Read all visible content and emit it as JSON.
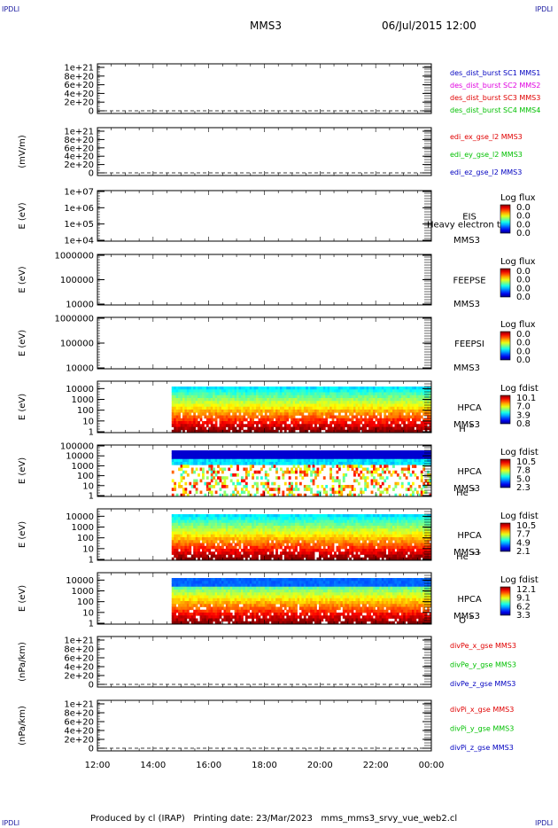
{
  "corner_marks": [
    "IPDLI",
    "IPDLI",
    "IPDLI",
    "IPDLI"
  ],
  "header": {
    "title": "MMS3",
    "date": "06/Jul/2015 12:00"
  },
  "footer": {
    "text": "Produced by cl (IRAP)   Printing date: 23/Mar/2023   mms_mms3_srvy_vue_web2.cl"
  },
  "colors": {
    "red": "#e00000",
    "magenta": "#e000e0",
    "green": "#00c000",
    "blue": "#0000c0",
    "black": "#000000"
  },
  "chart_data": [
    {
      "type": "line",
      "ylabel": "",
      "yticks": [
        "0",
        "2e+20",
        "4e+20",
        "6e+20",
        "8e+20",
        "1e+21"
      ],
      "ylim": [
        0,
        1e+21
      ],
      "dashed_zero": true,
      "legend": [
        {
          "name": "des_dist_burst SC1 MMS1",
          "color": "#0000c0"
        },
        {
          "name": "des_dist_burst SC2 MMS2",
          "color": "#e000e0"
        },
        {
          "name": "des_dist_burst SC3 MMS3",
          "color": "#e00000"
        },
        {
          "name": "des_dist_burst SC4 MMS4",
          "color": "#00c000"
        }
      ]
    },
    {
      "type": "line",
      "ylabel": "(mV/m)",
      "yticks": [
        "0",
        "2e+20",
        "4e+20",
        "6e+20",
        "8e+20",
        "1e+21"
      ],
      "ylim": [
        0,
        1e+21
      ],
      "dashed_zero": true,
      "legend": [
        {
          "name": "edi_ex_gse_l2 MMS3",
          "color": "#e00000"
        },
        {
          "name": "edi_ey_gse_l2 MMS3",
          "color": "#00c000"
        },
        {
          "name": "edi_ez_gse_l2 MMS3",
          "color": "#0000c0"
        }
      ]
    },
    {
      "type": "heatmap",
      "ylabel": "E (eV)",
      "scale": "log",
      "yticks": [
        "1e+04",
        "1e+05",
        "1e+06",
        "1e+07"
      ],
      "ylim": [
        10000,
        10000000
      ],
      "instrument": "EIS",
      "spacecraft": "MMS3",
      "note": "Heavy electron to",
      "colorbar": {
        "label": "Log flux",
        "ticks": [
          "0.0",
          "0.0",
          "0.0",
          "0.0"
        ]
      }
    },
    {
      "type": "heatmap",
      "ylabel": "E (eV)",
      "scale": "log",
      "yticks": [
        "10000",
        "100000",
        "1000000"
      ],
      "ylim": [
        10000,
        1000000
      ],
      "instrument": "FEEPSE",
      "spacecraft": "MMS3",
      "colorbar": {
        "label": "Log flux",
        "ticks": [
          "0.0",
          "0.0",
          "0.0",
          "0.0"
        ]
      }
    },
    {
      "type": "heatmap",
      "ylabel": "E (eV)",
      "scale": "log",
      "yticks": [
        "10000",
        "100000",
        "1000000"
      ],
      "ylim": [
        10000,
        1000000
      ],
      "instrument": "FEEPSI",
      "spacecraft": "MMS3",
      "colorbar": {
        "label": "Log flux",
        "ticks": [
          "0.0",
          "0.0",
          "0.0",
          "0.0"
        ]
      }
    },
    {
      "type": "heatmap",
      "ylabel": "E (eV)",
      "scale": "log",
      "yticks": [
        "1",
        "10",
        "100",
        "1000",
        "10000"
      ],
      "ylim": [
        1,
        40000
      ],
      "instrument": "HPCA",
      "spacecraft": "MMS3",
      "species": "H",
      "species_sup": "+",
      "data_start": "14:40",
      "colorbar": {
        "label": "Log fdist",
        "ticks": [
          "10.1",
          "7.0",
          "3.9",
          "0.8"
        ]
      }
    },
    {
      "type": "heatmap",
      "ylabel": "E (eV)",
      "scale": "log",
      "yticks": [
        "1",
        "10",
        "100",
        "1000",
        "10000",
        "100000"
      ],
      "ylim": [
        1,
        100000
      ],
      "instrument": "HPCA",
      "spacecraft": "MMS3",
      "species": "He",
      "species_sup": "+",
      "data_start": "14:40",
      "colorbar": {
        "label": "Log fdist",
        "ticks": [
          "10.5",
          "7.8",
          "5.0",
          "2.3"
        ]
      }
    },
    {
      "type": "heatmap",
      "ylabel": "E (eV)",
      "scale": "log",
      "yticks": [
        "1",
        "10",
        "100",
        "1000",
        "10000"
      ],
      "ylim": [
        1,
        40000
      ],
      "instrument": "HPCA",
      "spacecraft": "MMS3",
      "species": "He",
      "species_sup": "++",
      "data_start": "14:40",
      "colorbar": {
        "label": "Log fdist",
        "ticks": [
          "10.5",
          "7.7",
          "4.9",
          "2.1"
        ]
      }
    },
    {
      "type": "heatmap",
      "ylabel": "E (eV)",
      "scale": "log",
      "yticks": [
        "1",
        "10",
        "100",
        "1000",
        "10000"
      ],
      "ylim": [
        1,
        40000
      ],
      "instrument": "HPCA",
      "spacecraft": "MMS3",
      "species": "O",
      "species_sup": "+",
      "data_start": "14:40",
      "colorbar": {
        "label": "Log fdist",
        "ticks": [
          "12.1",
          "9.1",
          "6.2",
          "3.3"
        ]
      }
    },
    {
      "type": "line",
      "ylabel": "(nPa/km)",
      "yticks": [
        "0",
        "2e+20",
        "4e+20",
        "6e+20",
        "8e+20",
        "1e+21"
      ],
      "ylim": [
        0,
        1e+21
      ],
      "dashed_zero": true,
      "legend": [
        {
          "name": "divPe_x_gse MMS3",
          "color": "#e00000"
        },
        {
          "name": "divPe_y_gse MMS3",
          "color": "#00c000"
        },
        {
          "name": "divPe_z_gse MMS3",
          "color": "#0000c0"
        }
      ]
    },
    {
      "type": "line",
      "ylabel": "(nPa/km)",
      "yticks": [
        "0",
        "2e+20",
        "4e+20",
        "6e+20",
        "8e+20",
        "1e+21"
      ],
      "ylim": [
        0,
        1e+21
      ],
      "dashed_zero": true,
      "legend": [
        {
          "name": "divPi_x_gse MMS3",
          "color": "#e00000"
        },
        {
          "name": "divPi_y_gse MMS3",
          "color": "#00c000"
        },
        {
          "name": "divPi_z_gse MMS3",
          "color": "#0000c0"
        }
      ]
    }
  ],
  "xaxis": {
    "ticks": [
      "12:00",
      "14:00",
      "16:00",
      "18:00",
      "20:00",
      "22:00",
      "00:00"
    ]
  }
}
